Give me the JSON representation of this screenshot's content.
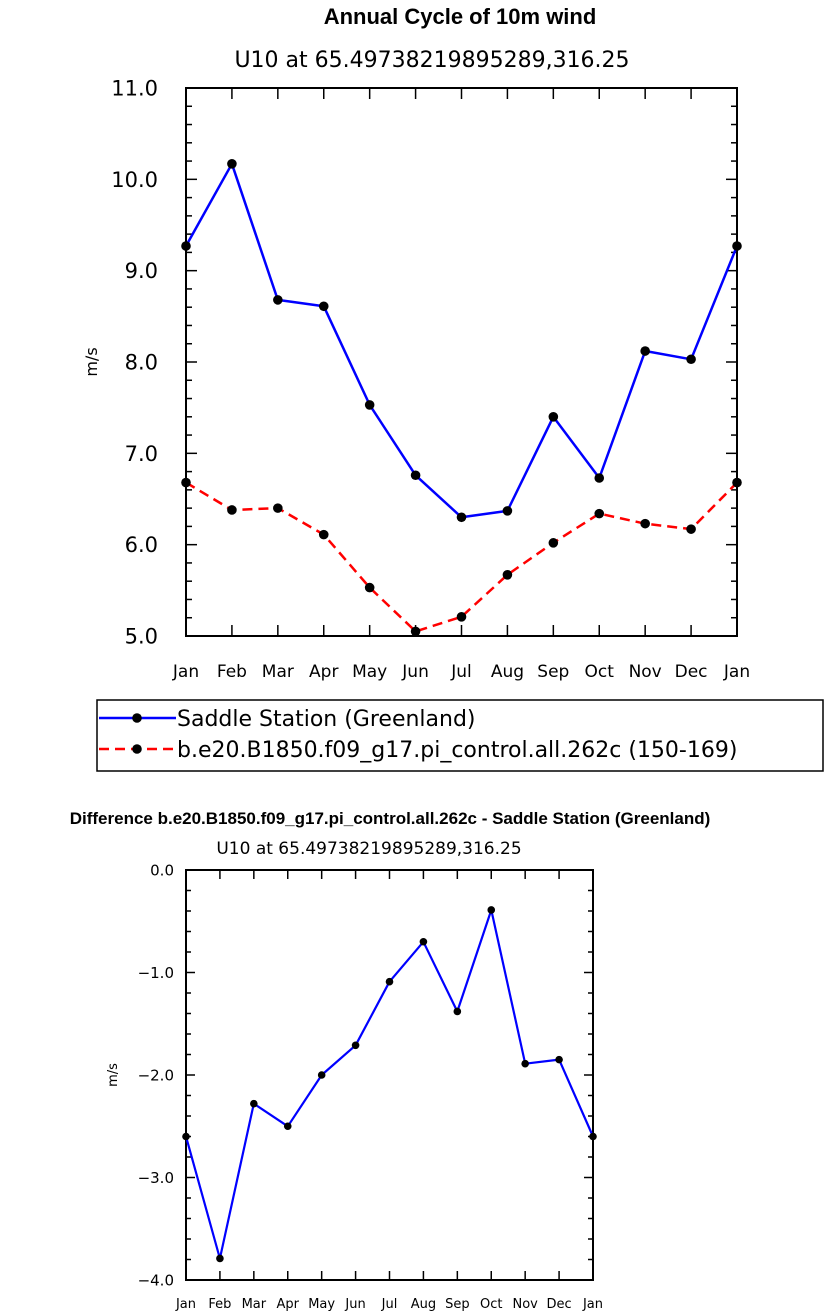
{
  "chart_data": [
    {
      "type": "line",
      "title": "Annual Cycle of 10m wind",
      "subtitle": "U10 at 65.49738219895289,316.25",
      "xlabel": "",
      "ylabel": "m/s",
      "ylim": [
        5.0,
        11.0
      ],
      "yticks": [
        "5.0",
        "6.0",
        "7.0",
        "8.0",
        "9.0",
        "10.0",
        "11.0"
      ],
      "categories": [
        "Jan",
        "Feb",
        "Mar",
        "Apr",
        "May",
        "Jun",
        "Jul",
        "Aug",
        "Sep",
        "Oct",
        "Nov",
        "Dec",
        "Jan"
      ],
      "series": [
        {
          "name": "Saddle Station (Greenland)",
          "color": "#0000ff",
          "dash": "solid",
          "values": [
            9.27,
            10.17,
            8.68,
            8.61,
            7.53,
            6.76,
            6.3,
            6.37,
            7.4,
            6.73,
            8.12,
            8.03,
            9.27
          ]
        },
        {
          "name": "b.e20.B1850.f09_g17.pi_control.all.262c (150-169)",
          "color": "#ff0000",
          "dash": "dashed",
          "values": [
            6.68,
            6.38,
            6.4,
            6.11,
            5.53,
            5.05,
            5.21,
            5.67,
            6.02,
            6.34,
            6.23,
            6.17,
            6.68
          ]
        }
      ],
      "legend": "below"
    },
    {
      "type": "line",
      "title": "Difference b.e20.B1850.f09_g17.pi_control.all.262c - Saddle Station (Greenland)",
      "subtitle": "U10 at 65.49738219895289,316.25",
      "xlabel": "",
      "ylabel": "m/s",
      "ylim": [
        -4.0,
        0.0
      ],
      "yticks": [
        "−4.0",
        "−3.0",
        "−2.0",
        "−1.0",
        "0.0"
      ],
      "categories": [
        "Jan",
        "Feb",
        "Mar",
        "Apr",
        "May",
        "Jun",
        "Jul",
        "Aug",
        "Sep",
        "Oct",
        "Nov",
        "Dec",
        "Jan"
      ],
      "series": [
        {
          "name": "difference",
          "color": "#0000ff",
          "dash": "solid",
          "values": [
            -2.6,
            -3.79,
            -2.28,
            -2.5,
            -2.0,
            -1.71,
            -1.09,
            -0.7,
            -1.38,
            -0.39,
            -1.89,
            -1.85,
            -2.6
          ]
        }
      ]
    }
  ]
}
